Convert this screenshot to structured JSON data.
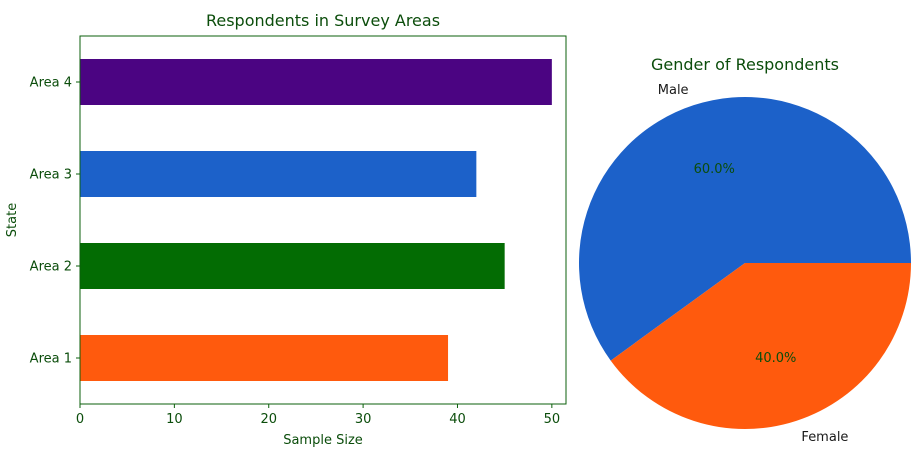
{
  "chart_data": [
    {
      "type": "bar",
      "orientation": "horizontal",
      "title": "Respondents in Survey Areas",
      "xlabel": "Sample Size",
      "ylabel": "State",
      "categories": [
        "Area 1",
        "Area 2",
        "Area 3",
        "Area 4"
      ],
      "values": [
        39,
        45,
        42,
        50
      ],
      "colors": [
        "#ff5a0d",
        "#036c03",
        "#1c61c9",
        "#4b0482"
      ],
      "xlim": [
        0,
        51.5
      ],
      "xticks": [
        0,
        10,
        20,
        30,
        40,
        50
      ],
      "grid": false,
      "text_color": "#0b4d0b",
      "axis_color": "#0b5f0b"
    },
    {
      "type": "pie",
      "title": "Gender of Respondents",
      "labels": [
        "Male",
        "Female"
      ],
      "values": [
        60.0,
        40.0
      ],
      "percent_labels": [
        "60.0%",
        "40.0%"
      ],
      "colors": [
        "#1c61c9",
        "#ff5a0d"
      ],
      "text_color": "#0b4d0b"
    }
  ]
}
